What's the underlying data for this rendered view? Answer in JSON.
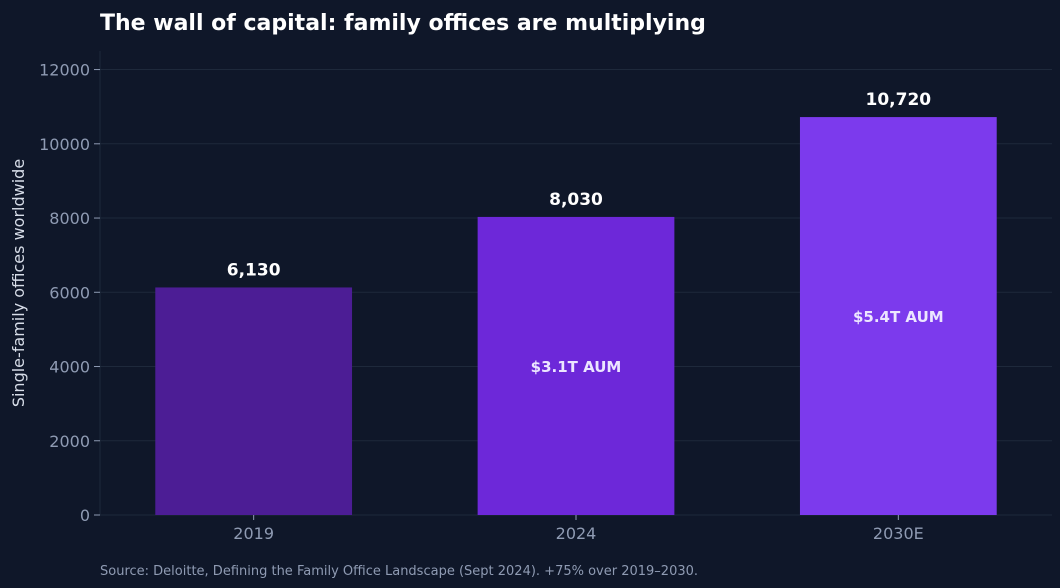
{
  "chart_data": {
    "type": "bar",
    "title": "The wall of capital: family offices are multiplying",
    "xlabel": "",
    "ylabel": "Single-family offices worldwide",
    "categories": [
      "2019",
      "2024",
      "2030E"
    ],
    "values": [
      6130,
      8030,
      10720
    ],
    "value_labels": [
      "6,130",
      "8,030",
      "10,720"
    ],
    "inner_labels": [
      "",
      "$3.1T AUM",
      "$5.4T AUM"
    ],
    "bar_colors": [
      "#4c1d95",
      "#6d28d9",
      "#7c3aed"
    ],
    "ylim": [
      0,
      12500
    ],
    "yticks": [
      0,
      2000,
      4000,
      6000,
      8000,
      10000,
      12000
    ],
    "ytick_labels": [
      "0",
      "2000",
      "4000",
      "6000",
      "8000",
      "10000",
      "12000"
    ],
    "grid": true,
    "source": "Source: Deloitte, Defining the Family Office Landscape (Sept 2024). +75% over 2019–2030."
  },
  "colors": {
    "background": "#0f1729",
    "grid": "#1e293b",
    "axis_text": "#8f9bb3"
  }
}
